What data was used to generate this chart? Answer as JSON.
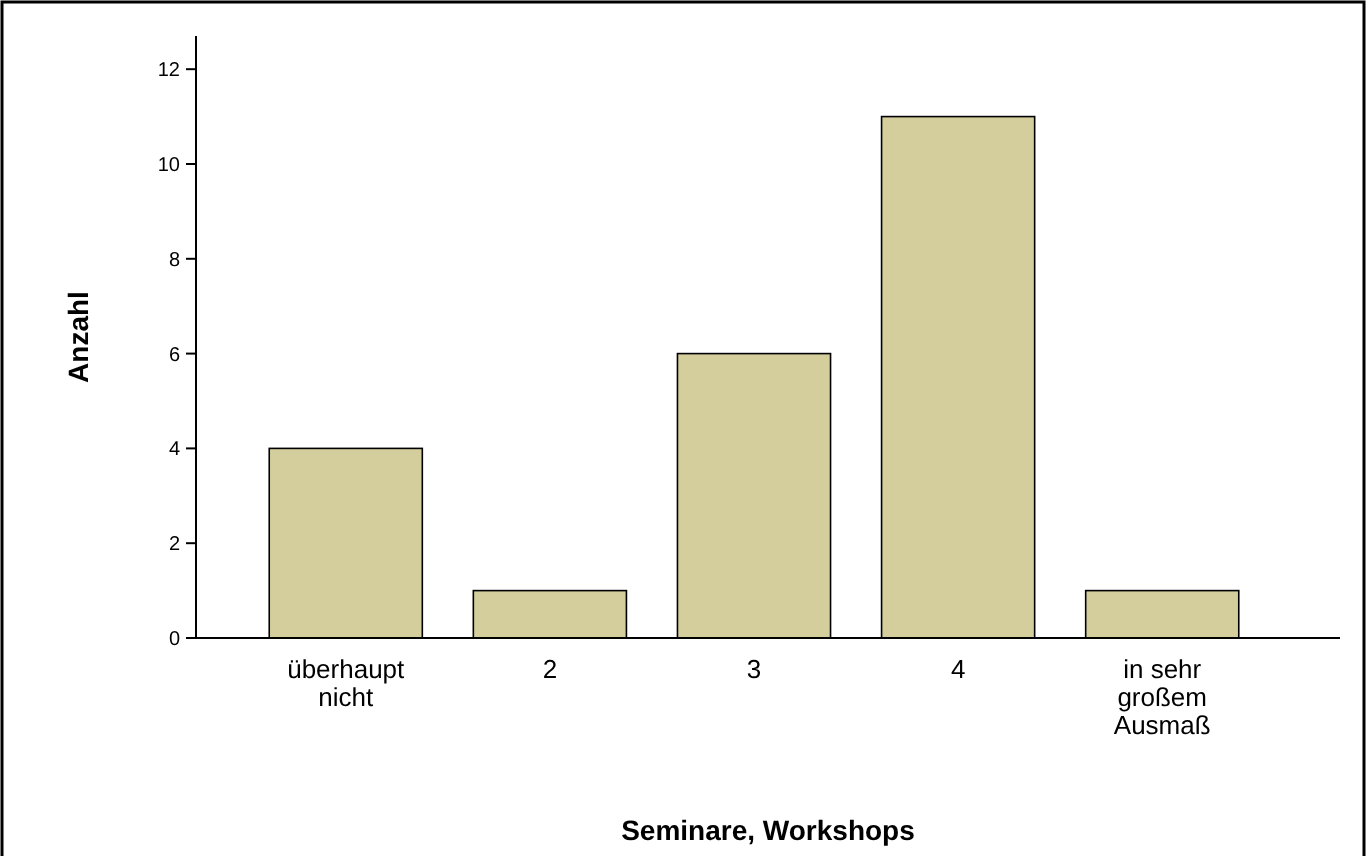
{
  "chart_data": {
    "type": "bar",
    "xlabel": "Seminare, Workshops",
    "ylabel": "Anzahl",
    "categories": [
      "überhaupt nicht",
      "2",
      "3",
      "4",
      "in sehr großem Ausmaß"
    ],
    "values": [
      4,
      1,
      6,
      11,
      1
    ],
    "color": "#d3ce9c",
    "ylim": [
      0,
      12.7
    ],
    "yticks": [
      0,
      2,
      4,
      6,
      8,
      10,
      12
    ],
    "grid": false
  }
}
